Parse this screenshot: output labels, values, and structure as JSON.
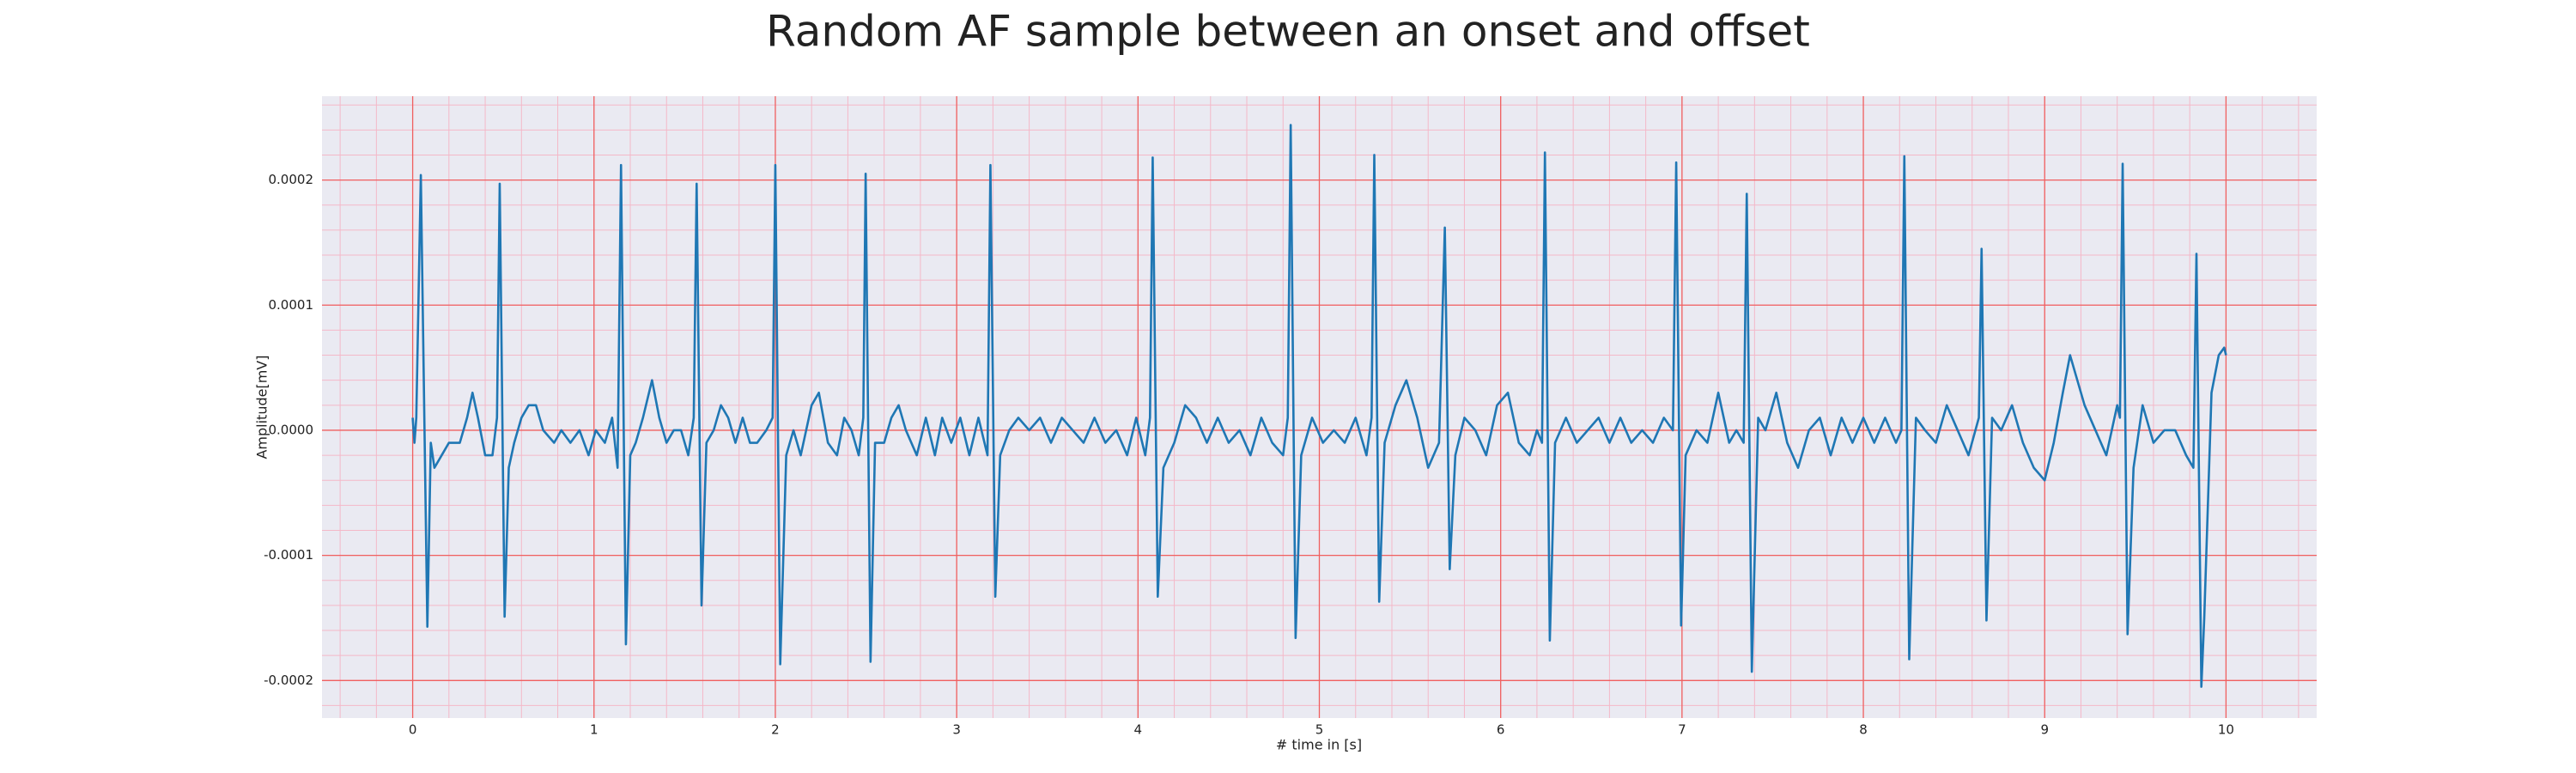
{
  "chart_data": {
    "type": "line",
    "title": "Random AF sample between an onset and offset",
    "xlabel": "# time in [s]",
    "ylabel": "Amplitude[mV]",
    "color": "#1f77b4",
    "grid": true,
    "minor_grid": true,
    "xlim": [
      -0.5,
      10.5
    ],
    "ylim": [
      -0.00023,
      0.000267
    ],
    "xticks": [
      0,
      1,
      2,
      3,
      4,
      5,
      6,
      7,
      8,
      9,
      10
    ],
    "yticks": [
      -0.0002,
      -0.0001,
      {
        "value": 0,
        "label": "0.0000"
      },
      0.0001,
      0.0002
    ],
    "x": [
      0.0,
      0.01,
      0.02,
      0.045,
      0.081,
      0.1,
      0.12,
      0.16,
      0.2,
      0.26,
      0.3,
      0.33,
      0.36,
      0.4,
      0.44,
      0.465,
      0.48,
      0.507,
      0.53,
      0.56,
      0.6,
      0.64,
      0.68,
      0.72,
      0.78,
      0.82,
      0.87,
      0.92,
      0.97,
      1.01,
      1.06,
      1.1,
      1.13,
      1.149,
      1.176,
      1.2,
      1.23,
      1.27,
      1.32,
      1.36,
      1.4,
      1.44,
      1.48,
      1.52,
      1.55,
      1.566,
      1.593,
      1.62,
      1.66,
      1.7,
      1.74,
      1.78,
      1.82,
      1.86,
      1.9,
      1.95,
      1.985,
      2.0,
      2.027,
      2.06,
      2.1,
      2.14,
      2.2,
      2.24,
      2.29,
      2.34,
      2.38,
      2.42,
      2.46,
      2.485,
      2.498,
      2.525,
      2.55,
      2.6,
      2.64,
      2.68,
      2.72,
      2.78,
      2.83,
      2.88,
      2.92,
      2.97,
      3.02,
      3.07,
      3.12,
      3.17,
      3.186,
      3.213,
      3.24,
      3.29,
      3.34,
      3.4,
      3.46,
      3.52,
      3.58,
      3.64,
      3.7,
      3.76,
      3.82,
      3.88,
      3.94,
      3.99,
      4.04,
      4.066,
      4.081,
      4.109,
      4.14,
      4.2,
      4.26,
      4.32,
      4.38,
      4.44,
      4.5,
      4.56,
      4.62,
      4.68,
      4.74,
      4.8,
      4.826,
      4.842,
      4.869,
      4.9,
      4.96,
      5.02,
      5.08,
      5.14,
      5.2,
      5.26,
      5.288,
      5.303,
      5.33,
      5.36,
      5.42,
      5.48,
      5.54,
      5.6,
      5.66,
      5.692,
      5.719,
      5.75,
      5.8,
      5.86,
      5.92,
      5.98,
      6.04,
      6.1,
      6.16,
      6.2,
      6.228,
      6.244,
      6.271,
      6.3,
      6.36,
      6.42,
      6.48,
      6.54,
      6.6,
      6.66,
      6.72,
      6.78,
      6.84,
      6.9,
      6.95,
      6.968,
      6.995,
      7.02,
      7.08,
      7.14,
      7.2,
      7.26,
      7.3,
      7.34,
      7.357,
      7.385,
      7.42,
      7.46,
      7.52,
      7.58,
      7.64,
      7.7,
      7.76,
      7.82,
      7.88,
      7.94,
      8.0,
      8.06,
      8.12,
      8.18,
      8.21,
      8.226,
      8.253,
      8.29,
      8.34,
      8.4,
      8.46,
      8.52,
      8.58,
      8.637,
      8.652,
      8.679,
      8.71,
      8.76,
      8.82,
      8.88,
      8.94,
      9.0,
      9.05,
      9.1,
      9.14,
      9.18,
      9.22,
      9.28,
      9.34,
      9.4,
      9.415,
      9.43,
      9.457,
      9.49,
      9.54,
      9.6,
      9.66,
      9.72,
      9.78,
      9.82,
      9.837,
      9.864,
      9.88,
      9.92,
      9.96,
      9.99,
      10.0
    ],
    "values": [
      1e-05,
      -1e-05,
      1e-05,
      0.000204,
      -0.000157,
      -1e-05,
      -3e-05,
      -2e-05,
      -1e-05,
      -1e-05,
      1e-05,
      3e-05,
      1e-05,
      -2e-05,
      -2e-05,
      1e-05,
      0.000197,
      -0.000149,
      -3e-05,
      -1e-05,
      1e-05,
      2e-05,
      2e-05,
      0.0,
      -1e-05,
      0.0,
      -1e-05,
      0.0,
      -2e-05,
      0.0,
      -1e-05,
      1e-05,
      -3e-05,
      0.000212,
      -0.000171,
      -2e-05,
      -1e-05,
      1e-05,
      4e-05,
      1e-05,
      -1e-05,
      0.0,
      0.0,
      -2e-05,
      1e-05,
      0.000197,
      -0.00014,
      -1e-05,
      0.0,
      2e-05,
      1e-05,
      -1e-05,
      1e-05,
      -1e-05,
      -1e-05,
      0.0,
      1e-05,
      0.000212,
      -0.000187,
      -2e-05,
      0.0,
      -2e-05,
      2e-05,
      3e-05,
      -1e-05,
      -2e-05,
      1e-05,
      0.0,
      -2e-05,
      1e-05,
      0.000205,
      -0.000185,
      -1e-05,
      -1e-05,
      1e-05,
      2e-05,
      0.0,
      -2e-05,
      1e-05,
      -2e-05,
      1e-05,
      -1e-05,
      1e-05,
      -2e-05,
      1e-05,
      -2e-05,
      0.000212,
      -0.000133,
      -2e-05,
      0.0,
      1e-05,
      0.0,
      1e-05,
      -1e-05,
      1e-05,
      0.0,
      -1e-05,
      1e-05,
      -1e-05,
      0.0,
      -2e-05,
      1e-05,
      -2e-05,
      1e-05,
      0.000218,
      -0.000133,
      -3e-05,
      -1e-05,
      2e-05,
      1e-05,
      -1e-05,
      1e-05,
      -1e-05,
      0.0,
      -2e-05,
      1e-05,
      -1e-05,
      -2e-05,
      1e-05,
      0.000244,
      -0.000166,
      -2e-05,
      1e-05,
      -1e-05,
      0.0,
      -1e-05,
      1e-05,
      -2e-05,
      1e-05,
      0.00022,
      -0.000137,
      -1e-05,
      2e-05,
      4e-05,
      1e-05,
      -3e-05,
      -1e-05,
      0.000162,
      -0.000111,
      -2e-05,
      1e-05,
      0.0,
      -2e-05,
      2e-05,
      3e-05,
      -1e-05,
      -2e-05,
      0.0,
      -1e-05,
      0.000222,
      -0.000168,
      -1e-05,
      1e-05,
      -1e-05,
      0.0,
      1e-05,
      -1e-05,
      1e-05,
      -1e-05,
      0.0,
      -1e-05,
      1e-05,
      0.0,
      0.000214,
      -0.000156,
      -2e-05,
      0.0,
      -1e-05,
      3e-05,
      -1e-05,
      0.0,
      -1e-05,
      0.000189,
      -0.000193,
      1e-05,
      0.0,
      3e-05,
      -1e-05,
      -3e-05,
      0.0,
      1e-05,
      -2e-05,
      1e-05,
      -1e-05,
      1e-05,
      -1e-05,
      1e-05,
      -1e-05,
      0.0,
      0.000219,
      -0.000183,
      1e-05,
      0.0,
      -1e-05,
      2e-05,
      0.0,
      -2e-05,
      1e-05,
      0.000145,
      -0.000152,
      1e-05,
      0.0,
      2e-05,
      -1e-05,
      -3e-05,
      -4e-05,
      -1e-05,
      3e-05,
      6e-05,
      4e-05,
      2e-05,
      0.0,
      -2e-05,
      2e-05,
      1e-05,
      0.000213,
      -0.000163,
      -3e-05,
      2e-05,
      -1e-05,
      0.0,
      0.0,
      -2e-05,
      -3e-05,
      0.000141,
      -0.000205,
      -0.00015,
      3e-05,
      6e-05,
      6.6e-05,
      6e-05
    ]
  }
}
